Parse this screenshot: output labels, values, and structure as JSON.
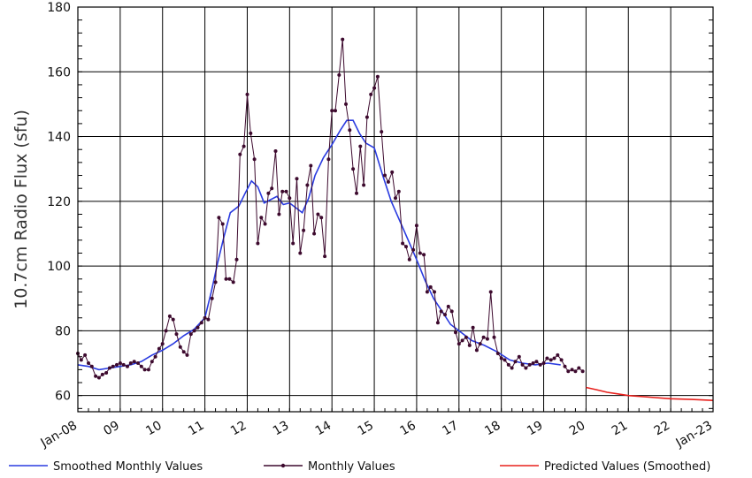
{
  "chart_data": {
    "type": "line",
    "title": "",
    "xlabel": "",
    "ylabel": "10.7cm Radio Flux (sfu)",
    "ylim": [
      55,
      180
    ],
    "yticks": [
      60,
      80,
      100,
      120,
      140,
      160,
      180
    ],
    "xlim": [
      2008.0,
      2023.0
    ],
    "xtick_labels": [
      {
        "x": 2008.0,
        "label": "Jan-08"
      },
      {
        "x": 2009.0,
        "label": "09"
      },
      {
        "x": 2010.0,
        "label": "10"
      },
      {
        "x": 2011.0,
        "label": "11"
      },
      {
        "x": 2012.0,
        "label": "12"
      },
      {
        "x": 2013.0,
        "label": "13"
      },
      {
        "x": 2014.0,
        "label": "14"
      },
      {
        "x": 2015.0,
        "label": "15"
      },
      {
        "x": 2016.0,
        "label": "16"
      },
      {
        "x": 2017.0,
        "label": "17"
      },
      {
        "x": 2018.0,
        "label": "18"
      },
      {
        "x": 2019.0,
        "label": "19"
      },
      {
        "x": 2020.0,
        "label": "20"
      },
      {
        "x": 2021.0,
        "label": "21"
      },
      {
        "x": 2022.0,
        "label": "22"
      },
      {
        "x": 2023.0,
        "label": "Jan-23"
      }
    ],
    "grid": true,
    "legend_position": "bottom",
    "series": [
      {
        "name": "Smoothed Monthly Values",
        "color": "#2a3be0",
        "marker": false,
        "points": [
          [
            2008.0,
            69.5
          ],
          [
            2008.25,
            69.0
          ],
          [
            2008.5,
            68.0
          ],
          [
            2008.75,
            68.5
          ],
          [
            2009.0,
            69.0
          ],
          [
            2009.25,
            69.5
          ],
          [
            2009.5,
            70.5
          ],
          [
            2009.75,
            72.5
          ],
          [
            2010.0,
            74.0
          ],
          [
            2010.25,
            76.0
          ],
          [
            2010.5,
            78.5
          ],
          [
            2010.75,
            80.5
          ],
          [
            2011.0,
            84.0
          ],
          [
            2011.15,
            92.0
          ],
          [
            2011.3,
            101.0
          ],
          [
            2011.45,
            109.0
          ],
          [
            2011.6,
            116.5
          ],
          [
            2011.8,
            118.5
          ],
          [
            2011.95,
            122.5
          ],
          [
            2012.1,
            126.3
          ],
          [
            2012.25,
            124.5
          ],
          [
            2012.4,
            119.5
          ],
          [
            2012.55,
            120.5
          ],
          [
            2012.7,
            121.5
          ],
          [
            2012.85,
            119.0
          ],
          [
            2013.0,
            119.5
          ],
          [
            2013.15,
            118.0
          ],
          [
            2013.3,
            116.5
          ],
          [
            2013.45,
            121.0
          ],
          [
            2013.6,
            128.0
          ],
          [
            2013.8,
            133.5
          ],
          [
            2014.0,
            137.5
          ],
          [
            2014.2,
            142.0
          ],
          [
            2014.35,
            145.0
          ],
          [
            2014.5,
            145.0
          ],
          [
            2014.65,
            141.0
          ],
          [
            2014.8,
            138.0
          ],
          [
            2015.0,
            136.5
          ],
          [
            2015.2,
            128.0
          ],
          [
            2015.4,
            120.0
          ],
          [
            2015.6,
            114.0
          ],
          [
            2015.8,
            108.0
          ],
          [
            2016.0,
            102.0
          ],
          [
            2016.2,
            95.5
          ],
          [
            2016.4,
            90.0
          ],
          [
            2016.6,
            86.0
          ],
          [
            2016.8,
            82.0
          ],
          [
            2017.0,
            80.0
          ],
          [
            2017.3,
            77.0
          ],
          [
            2017.6,
            75.5
          ],
          [
            2017.9,
            73.5
          ],
          [
            2018.2,
            71.0
          ],
          [
            2018.5,
            70.0
          ],
          [
            2018.8,
            69.5
          ],
          [
            2019.1,
            70.0
          ],
          [
            2019.4,
            69.5
          ]
        ]
      },
      {
        "name": "Monthly Values",
        "color": "#3d0a2e",
        "marker": true,
        "points": [
          [
            2008.0,
            73.0
          ],
          [
            2008.08,
            71.0
          ],
          [
            2008.17,
            72.5
          ],
          [
            2008.25,
            70.0
          ],
          [
            2008.33,
            69.0
          ],
          [
            2008.42,
            66.0
          ],
          [
            2008.5,
            65.5
          ],
          [
            2008.58,
            66.5
          ],
          [
            2008.67,
            67.0
          ],
          [
            2008.75,
            68.5
          ],
          [
            2008.83,
            69.0
          ],
          [
            2008.92,
            69.5
          ],
          [
            2009.0,
            70.0
          ],
          [
            2009.08,
            69.5
          ],
          [
            2009.17,
            69.0
          ],
          [
            2009.25,
            70.0
          ],
          [
            2009.33,
            70.5
          ],
          [
            2009.42,
            70.0
          ],
          [
            2009.5,
            69.0
          ],
          [
            2009.58,
            68.0
          ],
          [
            2009.67,
            68.0
          ],
          [
            2009.75,
            70.5
          ],
          [
            2009.83,
            72.0
          ],
          [
            2009.92,
            74.5
          ],
          [
            2010.0,
            76.0
          ],
          [
            2010.08,
            80.0
          ],
          [
            2010.17,
            84.5
          ],
          [
            2010.25,
            83.5
          ],
          [
            2010.33,
            79.0
          ],
          [
            2010.42,
            75.0
          ],
          [
            2010.5,
            73.5
          ],
          [
            2010.58,
            72.5
          ],
          [
            2010.67,
            79.0
          ],
          [
            2010.75,
            80.0
          ],
          [
            2010.83,
            81.0
          ],
          [
            2010.92,
            82.5
          ],
          [
            2011.0,
            84.0
          ],
          [
            2011.08,
            83.5
          ],
          [
            2011.17,
            90.0
          ],
          [
            2011.25,
            95.0
          ],
          [
            2011.33,
            115.0
          ],
          [
            2011.42,
            113.0
          ],
          [
            2011.5,
            96.0
          ],
          [
            2011.58,
            96.0
          ],
          [
            2011.67,
            95.0
          ],
          [
            2011.75,
            102.0
          ],
          [
            2011.83,
            134.5
          ],
          [
            2011.92,
            137.0
          ],
          [
            2012.0,
            153.0
          ],
          [
            2012.08,
            141.0
          ],
          [
            2012.17,
            133.0
          ],
          [
            2012.25,
            107.0
          ],
          [
            2012.33,
            115.0
          ],
          [
            2012.42,
            113.0
          ],
          [
            2012.5,
            122.5
          ],
          [
            2012.58,
            124.0
          ],
          [
            2012.67,
            135.5
          ],
          [
            2012.75,
            116.0
          ],
          [
            2012.83,
            123.0
          ],
          [
            2012.92,
            123.0
          ],
          [
            2013.0,
            121.0
          ],
          [
            2013.08,
            107.0
          ],
          [
            2013.17,
            127.0
          ],
          [
            2013.25,
            104.0
          ],
          [
            2013.33,
            111.0
          ],
          [
            2013.42,
            125.0
          ],
          [
            2013.5,
            131.0
          ],
          [
            2013.58,
            110.0
          ],
          [
            2013.67,
            116.0
          ],
          [
            2013.75,
            115.0
          ],
          [
            2013.83,
            103.0
          ],
          [
            2013.92,
            133.0
          ],
          [
            2014.0,
            148.0
          ],
          [
            2014.08,
            148.0
          ],
          [
            2014.17,
            159.0
          ],
          [
            2014.25,
            170.0
          ],
          [
            2014.33,
            150.0
          ],
          [
            2014.42,
            142.0
          ],
          [
            2014.5,
            130.0
          ],
          [
            2014.58,
            122.5
          ],
          [
            2014.67,
            137.0
          ],
          [
            2014.75,
            125.0
          ],
          [
            2014.83,
            146.0
          ],
          [
            2014.92,
            153.0
          ],
          [
            2015.0,
            155.0
          ],
          [
            2015.08,
            158.5
          ],
          [
            2015.17,
            141.5
          ],
          [
            2015.25,
            128.0
          ],
          [
            2015.33,
            126.0
          ],
          [
            2015.42,
            129.0
          ],
          [
            2015.5,
            121.0
          ],
          [
            2015.58,
            123.0
          ],
          [
            2015.67,
            107.0
          ],
          [
            2015.75,
            106.0
          ],
          [
            2015.83,
            102.0
          ],
          [
            2015.92,
            105.0
          ],
          [
            2016.0,
            112.5
          ],
          [
            2016.08,
            104.0
          ],
          [
            2016.17,
            103.5
          ],
          [
            2016.25,
            92.0
          ],
          [
            2016.33,
            93.5
          ],
          [
            2016.42,
            92.0
          ],
          [
            2016.5,
            82.5
          ],
          [
            2016.58,
            86.0
          ],
          [
            2016.67,
            85.0
          ],
          [
            2016.75,
            87.5
          ],
          [
            2016.83,
            86.0
          ],
          [
            2016.92,
            79.5
          ],
          [
            2017.0,
            76.0
          ],
          [
            2017.08,
            77.0
          ],
          [
            2017.17,
            78.0
          ],
          [
            2017.25,
            75.5
          ],
          [
            2017.33,
            81.0
          ],
          [
            2017.42,
            74.0
          ],
          [
            2017.5,
            76.0
          ],
          [
            2017.58,
            78.0
          ],
          [
            2017.67,
            77.5
          ],
          [
            2017.75,
            92.0
          ],
          [
            2017.83,
            78.0
          ],
          [
            2017.92,
            73.0
          ],
          [
            2018.0,
            71.5
          ],
          [
            2018.08,
            71.0
          ],
          [
            2018.17,
            69.5
          ],
          [
            2018.25,
            68.5
          ],
          [
            2018.33,
            70.5
          ],
          [
            2018.42,
            72.0
          ],
          [
            2018.5,
            69.5
          ],
          [
            2018.58,
            68.5
          ],
          [
            2018.67,
            69.5
          ],
          [
            2018.75,
            70.0
          ],
          [
            2018.83,
            70.5
          ],
          [
            2018.92,
            69.5
          ],
          [
            2019.0,
            70.0
          ],
          [
            2019.08,
            71.5
          ],
          [
            2019.17,
            71.0
          ],
          [
            2019.25,
            71.5
          ],
          [
            2019.33,
            72.5
          ],
          [
            2019.42,
            71.0
          ],
          [
            2019.5,
            69.0
          ],
          [
            2019.58,
            67.5
          ],
          [
            2019.67,
            68.0
          ],
          [
            2019.75,
            67.5
          ],
          [
            2019.83,
            68.5
          ],
          [
            2019.92,
            67.5
          ]
        ]
      },
      {
        "name": "Predicted Values (Smoothed)",
        "color": "#e8201c",
        "marker": false,
        "points": [
          [
            2020.0,
            62.5
          ],
          [
            2020.25,
            61.8
          ],
          [
            2020.5,
            61.0
          ],
          [
            2020.75,
            60.5
          ],
          [
            2021.0,
            60.0
          ],
          [
            2021.5,
            59.5
          ],
          [
            2022.0,
            59.0
          ],
          [
            2022.5,
            58.8
          ],
          [
            2023.0,
            58.5
          ]
        ]
      }
    ]
  }
}
